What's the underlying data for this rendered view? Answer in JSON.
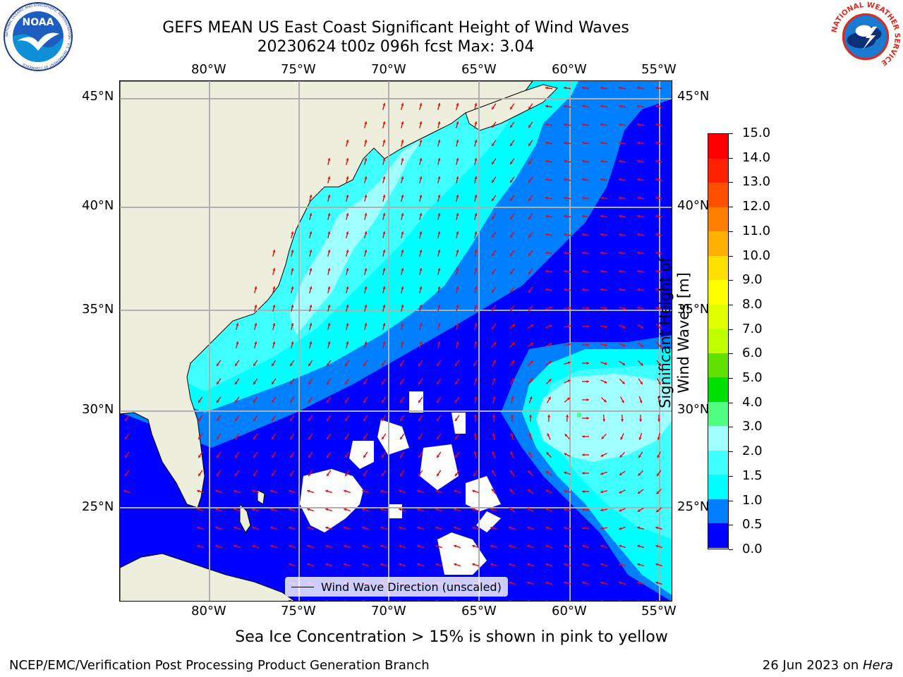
{
  "title": {
    "line1": "GEFS MEAN US East Coast Significant Height of Wind Waves",
    "line2": "20230624 t00z 096h fcst   Max: 3.04"
  },
  "logos": {
    "noaa": "NOAA",
    "noaa_ring": "NATIONAL OCEANIC AND ATMOSPHERIC ADMINISTRATION · U.S. DEPARTMENT OF COMMERCE",
    "nws_ring": "NATIONAL WEATHER SERVICE"
  },
  "map": {
    "lon_ticks": [
      "80°W",
      "75°W",
      "70°W",
      "65°W",
      "60°W",
      "55°W"
    ],
    "lat_ticks": [
      "45°N",
      "40°N",
      "35°N",
      "30°N",
      "25°N"
    ],
    "extent": {
      "lon": [
        -85,
        -54.3
      ],
      "lat": [
        20.3,
        45.9
      ]
    },
    "gridlines": true,
    "legend_label": "Wind Wave Direction (unscaled)",
    "colors": {
      "land": "#eeeedd",
      "vectors": "#ff0000",
      "missing": "#ffffff"
    }
  },
  "colorbar": {
    "label": "Significant Height of Wind Waves [m]",
    "ticks": [
      "0.0",
      "0.5",
      "1.0",
      "1.5",
      "2.0",
      "3.0",
      "4.0",
      "5.0",
      "6.0",
      "7.0",
      "8.0",
      "9.0",
      "10.0",
      "11.0",
      "12.0",
      "13.0",
      "14.0",
      "15.0"
    ],
    "colors": [
      "#0000ff",
      "#0080ff",
      "#00ffff",
      "#40ffff",
      "#a0ffff",
      "#50ff80",
      "#00e000",
      "#60e000",
      "#c0ff00",
      "#e0ff00",
      "#ffff00",
      "#ffe000",
      "#ffb000",
      "#ff8000",
      "#ff5000",
      "#ff2000",
      "#ff0000"
    ]
  },
  "footer": {
    "note": "Sea Ice Concentration > 15% is shown in pink to yellow",
    "left": "NCEP/EMC/Verification Post Processing Product Generation Branch",
    "right_date": "26 Jun 2023 on ",
    "right_machine": "Hera"
  }
}
